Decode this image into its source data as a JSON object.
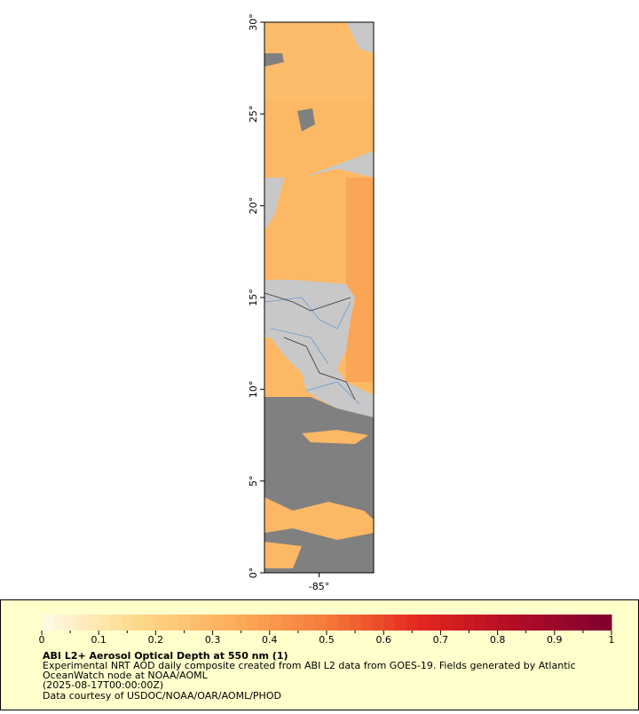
{
  "map": {
    "lat_range": [
      0,
      30
    ],
    "lon_range": [
      -88,
      -82
    ],
    "lat_ticks": [
      {
        "value": 0,
        "label": "0°"
      },
      {
        "value": 5,
        "label": "5°"
      },
      {
        "value": 10,
        "label": "10°"
      },
      {
        "value": 15,
        "label": "15°"
      },
      {
        "value": 20,
        "label": "20°"
      },
      {
        "value": 25,
        "label": "25°"
      },
      {
        "value": 30,
        "label": "30°"
      }
    ],
    "lon_ticks": [
      {
        "value": -85,
        "label": "-85°"
      }
    ]
  },
  "colorbar": {
    "range": [
      0,
      1
    ],
    "ticks": [
      0,
      0.1,
      0.2,
      0.3,
      0.4,
      0.5,
      0.6,
      0.7,
      0.8,
      0.9,
      1
    ],
    "colors": [
      "#fffbe6",
      "#fed98b",
      "#fdae5a",
      "#f67a3a",
      "#e2261e",
      "#b00d26",
      "#7f0030"
    ]
  },
  "legend": {
    "title": "ABI L2+ Aerosol Optical Depth at 550 nm (1)",
    "lines": [
      "Experimental NRT AOD daily composite created from ABI L2 data from GOES-19. Fields generated by Atlantic",
      "OceanWatch node at NOAA/AOML",
      "(2025-08-17T00:00:00Z)",
      "Data courtesy of USDOC/NOAA/OAR/AOML/PHOD"
    ]
  }
}
